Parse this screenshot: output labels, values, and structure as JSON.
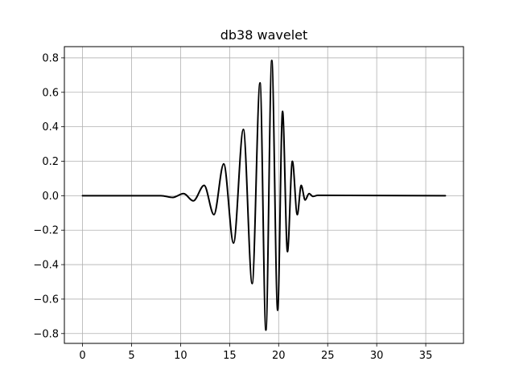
{
  "chart_data": {
    "type": "line",
    "title": "db38 wavelet",
    "xlabel": "",
    "ylabel": "",
    "xlim": [
      -1.85,
      38.85
    ],
    "ylim": [
      -0.857,
      0.865
    ],
    "xticks": [
      0,
      5,
      10,
      15,
      20,
      25,
      30,
      35
    ],
    "xtick_labels": [
      "0",
      "5",
      "10",
      "15",
      "20",
      "25",
      "30",
      "35"
    ],
    "yticks": [
      -0.8,
      -0.6,
      -0.4,
      -0.2,
      0.0,
      0.2,
      0.4,
      0.6,
      0.8
    ],
    "ytick_labels": [
      "−0.8",
      "−0.6",
      "−0.4",
      "−0.2",
      "0.0",
      "0.2",
      "0.4",
      "0.6",
      "0.8"
    ],
    "grid": true,
    "series": [
      {
        "color": "#000000",
        "x": [
          0,
          8.0,
          9.2,
          10.3,
          11.3,
          12.4,
          13.4,
          14.4,
          15.4,
          16.4,
          17.3,
          18.1,
          18.7,
          19.3,
          19.9,
          20.4,
          20.9,
          21.4,
          21.9,
          22.3,
          22.7,
          23.1,
          23.5,
          24.0,
          37.0
        ],
        "y": [
          0,
          0,
          -0.01,
          0.012,
          -0.03,
          0.06,
          -0.11,
          0.185,
          -0.275,
          0.385,
          -0.51,
          0.655,
          -0.78,
          0.785,
          -0.665,
          0.49,
          -0.325,
          0.2,
          -0.11,
          0.06,
          -0.025,
          0.012,
          -0.004,
          0.002,
          0
        ]
      }
    ]
  }
}
